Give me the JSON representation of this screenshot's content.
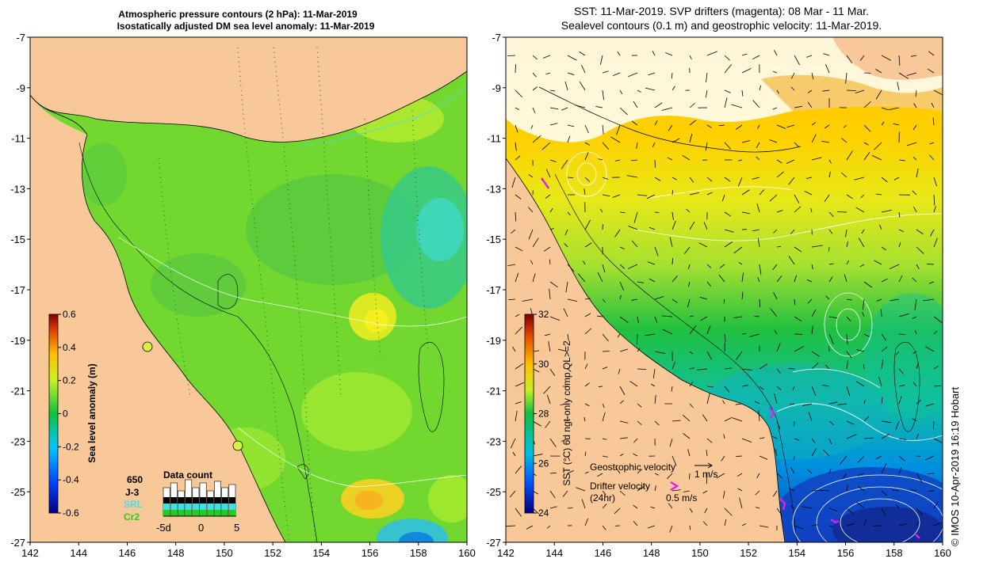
{
  "left_panel": {
    "title_line1": "Atmospheric pressure contours (2 hPa): 11-Mar-2019",
    "title_line2": "Isostatically adjusted DM sea level anomaly: 11-Mar-2019",
    "y_ticks": [
      "-7",
      "-9",
      "-11",
      "-13",
      "-15",
      "-17",
      "-19",
      "-21",
      "-23",
      "-25",
      "-27"
    ],
    "x_ticks": [
      "142",
      "144",
      "146",
      "148",
      "150",
      "152",
      "154",
      "156",
      "158",
      "160"
    ],
    "colorbar": {
      "label": "Sea level anomaly (m)",
      "ticks": [
        "0.6",
        "0.4",
        "0.2",
        "0",
        "-0.2",
        "-0.4",
        "-0.6"
      ],
      "range": [
        -0.6,
        0.6
      ]
    },
    "data_count": {
      "title": "Data count",
      "total": "650",
      "sources": [
        "J-3",
        "SRL",
        "Cr2"
      ],
      "axis_ticks": [
        "-5d",
        "0",
        "5"
      ],
      "source_colors": [
        "#000000",
        "#40e0e0",
        "#22cc22"
      ]
    }
  },
  "right_panel": {
    "title_line1": "SST: 11-Mar-2019. SVP drifters (magenta): 08 Mar - 11 Mar.",
    "title_line2": "Sealevel contours (0.1 m) and geostrophic velocity: 11-Mar-2019.",
    "y_ticks": [
      "-7",
      "-9",
      "-11",
      "-13",
      "-15",
      "-17",
      "-19",
      "-21",
      "-23",
      "-25",
      "-27"
    ],
    "x_ticks": [
      "142",
      "144",
      "146",
      "148",
      "150",
      "152",
      "154",
      "156",
      "158",
      "160"
    ],
    "colorbar": {
      "label": "SST (°C) 6d ngt-only comp QL>=2",
      "ticks": [
        "32",
        "30",
        "28",
        "26",
        "24"
      ],
      "range": [
        24,
        32
      ]
    },
    "legend": {
      "geo_label": "Geostrophic velocity",
      "geo_scale": "1 m/s",
      "drifter_label": "Drifter velocity",
      "drifter_sub": "(24hr)",
      "drifter_scale": "0.5 m/s"
    }
  },
  "credit": "© IMOS 10-Apr-2019 16:19 Hobart",
  "colors": {
    "land": "#f8c898",
    "sla_main": "#72d830",
    "sla_light": "#a8ec30",
    "drifter": "#e020e0"
  }
}
